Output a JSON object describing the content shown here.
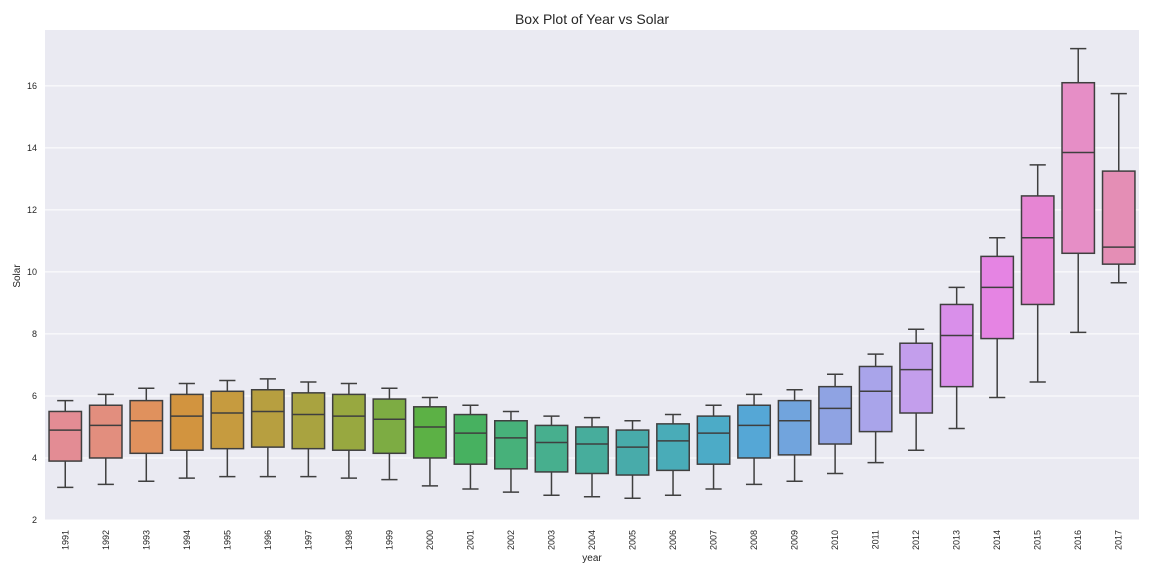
{
  "chart_data": {
    "type": "box",
    "title": "Box Plot of Year vs Solar",
    "xlabel": "year",
    "ylabel": "Solar",
    "ylim": [
      2,
      17.8
    ],
    "yticks": [
      2,
      4,
      6,
      8,
      10,
      12,
      14,
      16
    ],
    "grid": true,
    "categories": [
      "1991",
      "1992",
      "1993",
      "1994",
      "1995",
      "1996",
      "1997",
      "1998",
      "1999",
      "2000",
      "2001",
      "2002",
      "2003",
      "2004",
      "2005",
      "2006",
      "2007",
      "2008",
      "2009",
      "2010",
      "2011",
      "2012",
      "2013",
      "2014",
      "2015",
      "2016",
      "2017"
    ],
    "boxes": [
      {
        "min": 3.05,
        "q1": 3.9,
        "median": 4.9,
        "q3": 5.5,
        "max": 5.85,
        "color": "#e38c94"
      },
      {
        "min": 3.15,
        "q1": 4.0,
        "median": 5.05,
        "q3": 5.7,
        "max": 6.05,
        "color": "#e28e7e"
      },
      {
        "min": 3.25,
        "q1": 4.15,
        "median": 5.2,
        "q3": 5.85,
        "max": 6.25,
        "color": "#e0915d"
      },
      {
        "min": 3.35,
        "q1": 4.25,
        "median": 5.35,
        "q3": 6.05,
        "max": 6.4,
        "color": "#d2943f"
      },
      {
        "min": 3.4,
        "q1": 4.3,
        "median": 5.45,
        "q3": 6.15,
        "max": 6.5,
        "color": "#c69b3f"
      },
      {
        "min": 3.4,
        "q1": 4.35,
        "median": 5.5,
        "q3": 6.2,
        "max": 6.55,
        "color": "#b79f40"
      },
      {
        "min": 3.4,
        "q1": 4.3,
        "median": 5.4,
        "q3": 6.1,
        "max": 6.45,
        "color": "#a9a340"
      },
      {
        "min": 3.35,
        "q1": 4.25,
        "median": 5.35,
        "q3": 6.05,
        "max": 6.4,
        "color": "#98a840"
      },
      {
        "min": 3.3,
        "q1": 4.15,
        "median": 5.25,
        "q3": 5.9,
        "max": 6.25,
        "color": "#7dac43"
      },
      {
        "min": 3.1,
        "q1": 4.0,
        "median": 5.0,
        "q3": 5.65,
        "max": 5.95,
        "color": "#5cb145"
      },
      {
        "min": 3.0,
        "q1": 3.8,
        "median": 4.8,
        "q3": 5.4,
        "max": 5.7,
        "color": "#47b160"
      },
      {
        "min": 2.9,
        "q1": 3.65,
        "median": 4.65,
        "q3": 5.2,
        "max": 5.5,
        "color": "#47b17a"
      },
      {
        "min": 2.8,
        "q1": 3.55,
        "median": 4.5,
        "q3": 5.05,
        "max": 5.35,
        "color": "#47af8e"
      },
      {
        "min": 2.75,
        "q1": 3.5,
        "median": 4.45,
        "q3": 5.0,
        "max": 5.3,
        "color": "#47ad9c"
      },
      {
        "min": 2.7,
        "q1": 3.45,
        "median": 4.35,
        "q3": 4.9,
        "max": 5.2,
        "color": "#48abaa"
      },
      {
        "min": 2.8,
        "q1": 3.6,
        "median": 4.55,
        "q3": 5.1,
        "max": 5.4,
        "color": "#49acb8"
      },
      {
        "min": 3.0,
        "q1": 3.8,
        "median": 4.8,
        "q3": 5.35,
        "max": 5.7,
        "color": "#4cabc7"
      },
      {
        "min": 3.15,
        "q1": 4.0,
        "median": 5.05,
        "q3": 5.7,
        "max": 6.05,
        "color": "#55a7d6"
      },
      {
        "min": 3.25,
        "q1": 4.1,
        "median": 5.2,
        "q3": 5.85,
        "max": 6.2,
        "color": "#71a4dd"
      },
      {
        "min": 3.5,
        "q1": 4.45,
        "median": 5.6,
        "q3": 6.3,
        "max": 6.7,
        "color": "#8fa3e3"
      },
      {
        "min": 3.85,
        "q1": 4.85,
        "median": 6.15,
        "q3": 6.95,
        "max": 7.35,
        "color": "#a9a4ea"
      },
      {
        "min": 4.25,
        "q1": 5.45,
        "median": 6.85,
        "q3": 7.7,
        "max": 8.15,
        "color": "#c39eec"
      },
      {
        "min": 4.95,
        "q1": 6.3,
        "median": 7.95,
        "q3": 8.95,
        "max": 9.5,
        "color": "#d98fea"
      },
      {
        "min": 5.95,
        "q1": 7.85,
        "median": 9.5,
        "q3": 10.5,
        "max": 11.1,
        "color": "#e584e3"
      },
      {
        "min": 6.45,
        "q1": 8.95,
        "median": 11.1,
        "q3": 12.45,
        "max": 13.45,
        "color": "#e685d3"
      },
      {
        "min": 8.05,
        "q1": 10.6,
        "median": 13.85,
        "q3": 16.1,
        "max": 17.2,
        "color": "#e68ec6"
      },
      {
        "min": 9.65,
        "q1": 10.25,
        "median": 10.8,
        "q3": 13.25,
        "max": 15.75,
        "color": "#e48eb5"
      }
    ]
  }
}
